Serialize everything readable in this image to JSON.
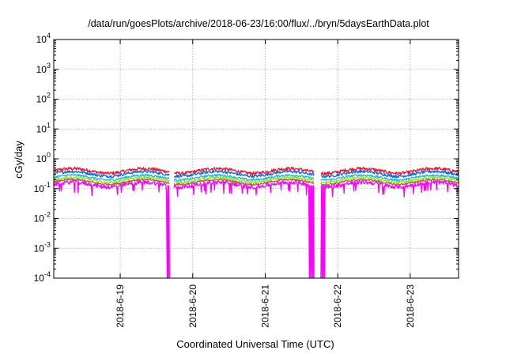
{
  "chart_data": {
    "type": "line",
    "title": "/data/run/goesPlots/archive/2018-06-23/16:00/flux/../bryn/5daysEarthData.plot",
    "xlabel": "Coordinated Universal Time (UTC)",
    "ylabel": "cGy/day",
    "x_range": [
      "2018-06-18T02:00",
      "2018-06-23T16:00"
    ],
    "xticks": [
      "2018-6-19",
      "2018-6-20",
      "2018-6-21",
      "2018-6-22",
      "2018-6-23"
    ],
    "y_scale": "log",
    "ylim": [
      0.0001,
      10000
    ],
    "yticks": [
      {
        "base": "10",
        "exp": "-4"
      },
      {
        "base": "10",
        "exp": "-3"
      },
      {
        "base": "10",
        "exp": "-2"
      },
      {
        "base": "10",
        "exp": "-1"
      },
      {
        "base": "10",
        "exp": "0"
      },
      {
        "base": "10",
        "exp": "1"
      },
      {
        "base": "10",
        "exp": "2"
      },
      {
        "base": "10",
        "exp": "3"
      },
      {
        "base": "10",
        "exp": "4"
      }
    ],
    "grid": true,
    "legend": "none",
    "series": [
      {
        "color": "#e8192c",
        "level": 0.4,
        "noise": 0.25
      },
      {
        "color": "#1a63e8",
        "level": 0.32,
        "noise": 0.22
      },
      {
        "color": "#2ab8c8",
        "level": 0.24,
        "noise": 0.18
      },
      {
        "color": "#9be02a",
        "level": 0.2,
        "noise": 0.15
      },
      {
        "color": "#9a6b2a",
        "level": 0.17,
        "noise": 0.14
      },
      {
        "color": "#ff00ff",
        "level": 0.14,
        "noise": 0.3
      }
    ],
    "gaps": [
      [
        "2018-06-19T16:20",
        "2018-06-19T17:40"
      ],
      [
        "2018-06-21T16:20",
        "2018-06-21T18:20"
      ]
    ],
    "dropouts": [
      {
        "start": "2018-06-19T15:20",
        "end": "2018-06-19T16:20",
        "series": "#ff00ff"
      },
      {
        "start": "2018-06-21T14:30",
        "end": "2018-06-21T16:20",
        "series": "#ff00ff"
      },
      {
        "start": "2018-06-21T18:20",
        "end": "2018-06-21T19:40",
        "series": "#ff00ff"
      }
    ]
  }
}
